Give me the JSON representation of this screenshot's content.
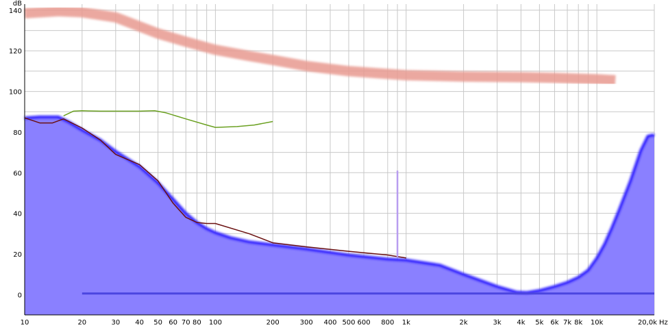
{
  "chart_data": {
    "type": "area",
    "x_unit_label": "Hz",
    "y_unit_label": "dB",
    "x_scale": "log",
    "xlim": [
      10,
      20000
    ],
    "ylim": [
      -10,
      143
    ],
    "grid": true,
    "x_ticks": [
      {
        "value": 10,
        "label": "10"
      },
      {
        "value": 20,
        "label": "20"
      },
      {
        "value": 30,
        "label": "30"
      },
      {
        "value": 40,
        "label": "40"
      },
      {
        "value": 50,
        "label": "50"
      },
      {
        "value": 60,
        "label": "60"
      },
      {
        "value": 70,
        "label": "70"
      },
      {
        "value": 80,
        "label": "80"
      },
      {
        "value": 100,
        "label": "100"
      },
      {
        "value": 200,
        "label": "200"
      },
      {
        "value": 300,
        "label": "300"
      },
      {
        "value": 400,
        "label": "400"
      },
      {
        "value": 500,
        "label": "500"
      },
      {
        "value": 600,
        "label": "600"
      },
      {
        "value": 800,
        "label": "800"
      },
      {
        "value": 1000,
        "label": "1k"
      },
      {
        "value": 2000,
        "label": "2k"
      },
      {
        "value": 3000,
        "label": "3k"
      },
      {
        "value": 4000,
        "label": "4k"
      },
      {
        "value": 5000,
        "label": "5k"
      },
      {
        "value": 6000,
        "label": "6k"
      },
      {
        "value": 7000,
        "label": "7k"
      },
      {
        "value": 8000,
        "label": "8k"
      },
      {
        "value": 10000,
        "label": "10k"
      },
      {
        "value": 20000,
        "label": "20,0k"
      }
    ],
    "x_minor_gridlines": [
      90,
      900,
      9000
    ],
    "y_ticks": [
      {
        "value": 0,
        "label": "0"
      },
      {
        "value": 20,
        "label": "20"
      },
      {
        "value": 40,
        "label": "40"
      },
      {
        "value": 60,
        "label": "60"
      },
      {
        "value": 80,
        "label": "80"
      },
      {
        "value": 100,
        "label": "100"
      },
      {
        "value": 120,
        "label": "120"
      },
      {
        "value": 140,
        "label": "140"
      }
    ],
    "y_minor_gridlines": [
      -10,
      10,
      30,
      50,
      70,
      90,
      110,
      130
    ],
    "series": [
      {
        "kind": "band",
        "color": "#e89a90",
        "x": [
          10,
          15,
          20,
          30,
          40,
          50,
          70,
          100,
          150,
          200,
          300,
          500,
          700,
          1000,
          2000,
          4000,
          6000,
          10000,
          12500
        ],
        "y": [
          138.5,
          139.5,
          139,
          136.5,
          132,
          128.5,
          124.5,
          120.5,
          117.5,
          115.5,
          112.5,
          110,
          109,
          108,
          107.3,
          107,
          106.7,
          106,
          105.5
        ]
      },
      {
        "kind": "area",
        "color": "#8a80ff",
        "outline": "#2a1fff",
        "x": [
          10,
          12,
          15,
          17,
          20,
          25,
          30,
          35,
          40,
          50,
          60,
          70,
          80,
          90,
          100,
          120,
          150,
          200,
          300,
          500,
          800,
          1000,
          1500,
          2000,
          3000,
          3800,
          4300,
          5000,
          6000,
          7000,
          8000,
          9000,
          10000,
          11000,
          12000,
          13000,
          15000,
          17000,
          18500,
          19500,
          20000
        ],
        "y": [
          87,
          87.5,
          87.5,
          85,
          81,
          76,
          70.5,
          66.5,
          63,
          55,
          47,
          40,
          35.5,
          32.5,
          30.5,
          28,
          26,
          24.5,
          22.5,
          19.5,
          17.5,
          17,
          14.5,
          10,
          4,
          1.2,
          1,
          2,
          4,
          6,
          8.5,
          12,
          18,
          25,
          33,
          41,
          56,
          71,
          78,
          78.5,
          78.5
        ]
      },
      {
        "kind": "line",
        "color": "#6a1010",
        "x": [
          10,
          12,
          14,
          16,
          20,
          25,
          30,
          40,
          50,
          60,
          70,
          80,
          90,
          100,
          150,
          200,
          300,
          500,
          800,
          1000
        ],
        "y": [
          87,
          84.5,
          84.5,
          86.5,
          82,
          76,
          69,
          64,
          56,
          45,
          38,
          35.5,
          35,
          35,
          30,
          25.5,
          23.5,
          21.3,
          19.5,
          18
        ]
      },
      {
        "kind": "line",
        "color": "#6aa020",
        "x": [
          16,
          18,
          20,
          25,
          30,
          40,
          48,
          55,
          70,
          90,
          100,
          130,
          160,
          200
        ],
        "y": [
          88,
          90.3,
          90.5,
          90.3,
          90.3,
          90.3,
          90.5,
          89.5,
          86.5,
          83.5,
          82.3,
          82.7,
          83.5,
          85.2
        ]
      },
      {
        "kind": "spike",
        "color": "#b89cf0",
        "x": [
          900,
          900
        ],
        "y": [
          18.5,
          61
        ]
      },
      {
        "kind": "line",
        "color": "#4b45e0",
        "x": [
          20,
          20000
        ],
        "y": [
          0.5,
          0.5
        ]
      }
    ]
  }
}
